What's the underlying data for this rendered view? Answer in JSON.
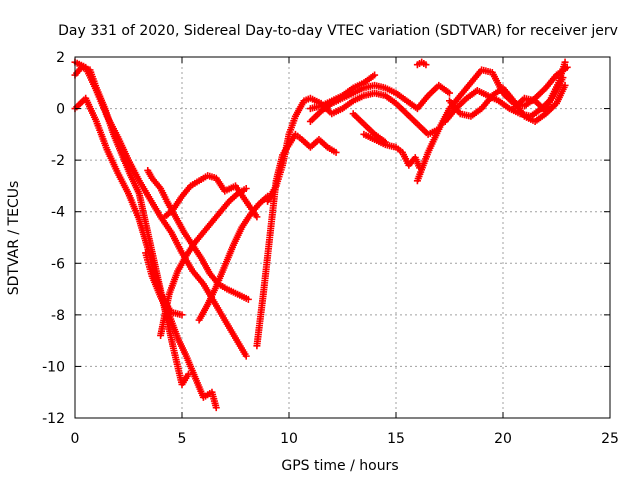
{
  "chart_data": {
    "type": "scatter",
    "title": "Day 331 of 2020, Sidereal Day-to-day VTEC variation (SDTVAR) for receiver jerv",
    "xlabel": "GPS time / hours",
    "ylabel": "SDTVAR / TECUs",
    "xlim": [
      0,
      25
    ],
    "ylim": [
      -12,
      2
    ],
    "xticks": [
      0,
      5,
      10,
      15,
      20,
      25
    ],
    "yticks": [
      -12,
      -10,
      -8,
      -6,
      -4,
      -2,
      0,
      2
    ],
    "grid": true,
    "legend": "none",
    "marker": "plus",
    "color": "#ff0000",
    "series": [
      {
        "x": [
          0.0,
          0.5,
          1.0,
          1.5,
          2.0,
          2.5,
          3.0,
          3.5,
          4.0,
          4.5,
          5.0,
          5.5,
          6.0,
          6.5,
          7.0,
          7.5,
          8.0
        ],
        "y": [
          1.8,
          1.6,
          0.7,
          -0.3,
          -1.1,
          -2.0,
          -2.8,
          -3.5,
          -4.2,
          -4.8,
          -5.6,
          -6.3,
          -6.8,
          -7.5,
          -8.2,
          -8.9,
          -9.6
        ]
      },
      {
        "x": [
          0.0,
          0.5,
          1.0,
          1.5,
          2.0,
          2.5,
          3.0,
          3.5,
          4.0,
          4.5,
          5.0
        ],
        "y": [
          0.0,
          0.4,
          -0.5,
          -1.6,
          -2.5,
          -3.3,
          -4.3,
          -5.7,
          -7.2,
          -7.9,
          -8.0
        ]
      },
      {
        "x": [
          0.0,
          0.3,
          0.7,
          1.0,
          1.4,
          1.8,
          2.2,
          2.6,
          3.0,
          3.4,
          3.8,
          4.2,
          4.6,
          5.0,
          5.3
        ],
        "y": [
          1.3,
          1.6,
          1.5,
          0.8,
          0.0,
          -1.0,
          -1.8,
          -2.6,
          -3.3,
          -4.8,
          -6.3,
          -7.8,
          -9.3,
          -10.7,
          -10.3
        ]
      },
      {
        "x": [
          3.3,
          3.6,
          4.0,
          4.4,
          4.8,
          5.2,
          5.6,
          6.0,
          6.4,
          6.6
        ],
        "y": [
          -5.6,
          -6.5,
          -7.3,
          -8.0,
          -8.9,
          -9.6,
          -10.4,
          -11.2,
          -11.0,
          -11.6
        ]
      },
      {
        "x": [
          3.4,
          3.6,
          4.0,
          4.3,
          4.7,
          5.1,
          5.5,
          5.9,
          6.3,
          6.7,
          7.1,
          7.6,
          8.1
        ],
        "y": [
          -2.4,
          -2.7,
          -3.1,
          -3.6,
          -4.2,
          -4.8,
          -5.3,
          -5.8,
          -6.4,
          -6.8,
          -7.0,
          -7.2,
          -7.4
        ]
      },
      {
        "x": [
          4.0,
          4.4,
          4.8,
          5.2,
          5.6,
          6.0,
          6.4,
          6.8,
          7.2,
          7.6,
          8.0
        ],
        "y": [
          -8.8,
          -7.2,
          -6.3,
          -5.7,
          -5.2,
          -4.8,
          -4.4,
          -4.0,
          -3.6,
          -3.3,
          -3.1
        ]
      },
      {
        "x": [
          4.2,
          4.6,
          5.0,
          5.4,
          5.8,
          6.2,
          6.6,
          7.0,
          7.5,
          8.0,
          8.5
        ],
        "y": [
          -4.2,
          -3.9,
          -3.4,
          -3.0,
          -2.8,
          -2.6,
          -2.7,
          -3.2,
          -3.0,
          -3.6,
          -4.2
        ]
      },
      {
        "x": [
          5.8,
          6.2,
          6.6,
          7.0,
          7.4,
          7.8,
          8.2,
          8.6,
          9.0
        ],
        "y": [
          -8.2,
          -7.6,
          -6.9,
          -6.1,
          -5.3,
          -4.6,
          -4.1,
          -3.7,
          -3.4
        ]
      },
      {
        "x": [
          8.5,
          8.8,
          9.1,
          9.4,
          9.7,
          10.0,
          10.3,
          10.6,
          11.0,
          11.4,
          11.8,
          12.2
        ],
        "y": [
          -9.2,
          -7.2,
          -5.0,
          -2.8,
          -1.8,
          -1.4,
          -1.0,
          -1.2,
          -1.5,
          -1.2,
          -1.5,
          -1.7
        ]
      },
      {
        "x": [
          9.0,
          9.2,
          9.4,
          9.7,
          10.0,
          10.3,
          10.7,
          11.0,
          11.5,
          12.0,
          12.5,
          13.0,
          13.5,
          14.0,
          14.5,
          15.0,
          15.5,
          16.0,
          16.5,
          17.0
        ],
        "y": [
          -3.6,
          -3.3,
          -3.0,
          -2.2,
          -1.0,
          -0.3,
          0.3,
          0.4,
          0.2,
          -0.2,
          0.0,
          0.3,
          0.5,
          0.6,
          0.5,
          0.2,
          -0.2,
          -0.6,
          -1.0,
          -0.8
        ]
      },
      {
        "x": [
          11.0,
          11.5,
          12.0,
          12.5,
          13.0,
          13.5,
          14.0,
          14.5,
          15.0,
          15.5,
          16.0,
          16.5,
          17.0,
          17.5
        ],
        "y": [
          -0.5,
          -0.1,
          0.2,
          0.4,
          0.6,
          0.8,
          0.9,
          0.8,
          0.6,
          0.3,
          0.0,
          0.5,
          0.9,
          0.6
        ]
      },
      {
        "x": [
          11.0,
          11.5,
          12.0,
          12.5,
          13.0,
          13.5,
          14.0
        ],
        "y": [
          0.0,
          0.1,
          0.3,
          0.5,
          0.8,
          1.0,
          1.3
        ]
      },
      {
        "x": [
          13.5,
          14.0,
          14.5,
          15.0,
          15.3,
          15.6,
          15.9,
          16.1
        ],
        "y": [
          -1.0,
          -1.2,
          -1.4,
          -1.5,
          -1.7,
          -2.2,
          -1.9,
          -2.3
        ]
      },
      {
        "x": [
          13.0,
          13.5,
          14.0,
          14.5
        ],
        "y": [
          -0.2,
          -0.6,
          -1.0,
          -1.3
        ]
      },
      {
        "x": [
          16.0,
          16.5,
          17.0,
          17.5,
          18.0,
          18.5,
          19.0,
          19.5,
          20.0,
          20.5,
          21.0,
          21.5,
          22.0,
          22.5,
          23.0
        ],
        "y": [
          -2.8,
          -1.7,
          -0.8,
          0.0,
          0.5,
          1.0,
          1.5,
          1.4,
          0.6,
          0.2,
          0.1,
          0.4,
          0.8,
          1.3,
          1.6
        ]
      },
      {
        "x": [
          16.0,
          16.2,
          16.4
        ],
        "y": [
          1.7,
          1.8,
          1.7
        ]
      },
      {
        "x": [
          17.3,
          17.8,
          18.3,
          18.8,
          19.3,
          19.8,
          20.3,
          20.8,
          21.3,
          21.8,
          22.3,
          22.8
        ],
        "y": [
          -0.5,
          0.0,
          0.4,
          0.7,
          0.5,
          0.3,
          0.0,
          -0.2,
          -0.3,
          0.0,
          0.4,
          1.2
        ]
      },
      {
        "x": [
          17.5,
          18.0,
          18.5,
          19.0,
          19.5,
          20.0,
          20.5,
          21.0,
          21.5,
          22.0,
          22.5,
          22.9
        ],
        "y": [
          0.3,
          -0.2,
          -0.3,
          0.0,
          0.5,
          0.8,
          0.3,
          -0.3,
          -0.5,
          -0.2,
          0.2,
          0.9
        ]
      },
      {
        "x": [
          20.5,
          21.0,
          21.5,
          22.0,
          22.3,
          22.6,
          22.9
        ],
        "y": [
          0.0,
          0.4,
          0.3,
          -0.1,
          0.5,
          1.0,
          1.8
        ]
      }
    ]
  }
}
